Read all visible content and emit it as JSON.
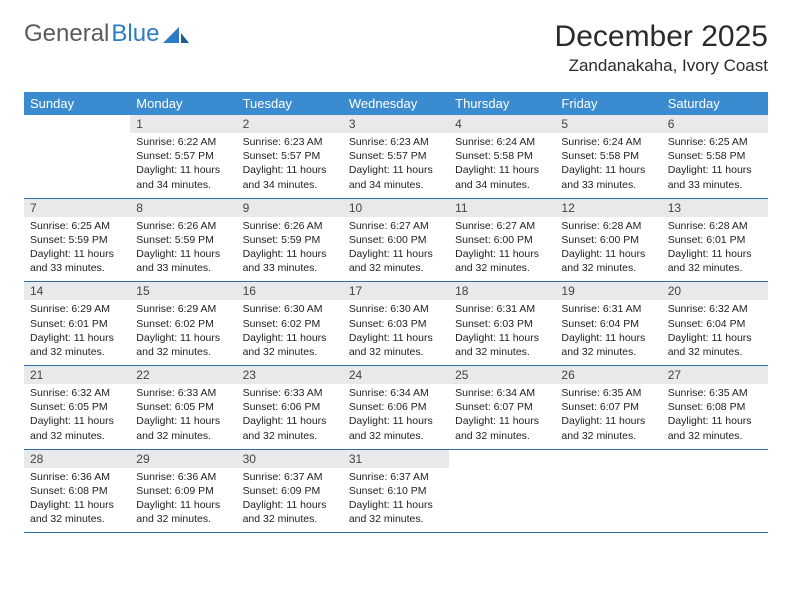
{
  "logo": {
    "part1": "General",
    "part2": "Blue"
  },
  "title": {
    "month": "December 2025",
    "location": "Zandanakaha, Ivory Coast"
  },
  "colors": {
    "header_bg": "#3b8bd0",
    "header_text": "#ffffff",
    "daynum_bg": "#e8e9ea",
    "row_border": "#2d6fa8",
    "logo_gray": "#5a5a5a",
    "logo_blue": "#2d7bc4"
  },
  "weekdays": [
    "Sunday",
    "Monday",
    "Tuesday",
    "Wednesday",
    "Thursday",
    "Friday",
    "Saturday"
  ],
  "weeks": [
    [
      {
        "empty": true
      },
      {
        "num": "1",
        "sunrise": "Sunrise: 6:22 AM",
        "sunset": "Sunset: 5:57 PM",
        "daylight": "Daylight: 11 hours and 34 minutes."
      },
      {
        "num": "2",
        "sunrise": "Sunrise: 6:23 AM",
        "sunset": "Sunset: 5:57 PM",
        "daylight": "Daylight: 11 hours and 34 minutes."
      },
      {
        "num": "3",
        "sunrise": "Sunrise: 6:23 AM",
        "sunset": "Sunset: 5:57 PM",
        "daylight": "Daylight: 11 hours and 34 minutes."
      },
      {
        "num": "4",
        "sunrise": "Sunrise: 6:24 AM",
        "sunset": "Sunset: 5:58 PM",
        "daylight": "Daylight: 11 hours and 34 minutes."
      },
      {
        "num": "5",
        "sunrise": "Sunrise: 6:24 AM",
        "sunset": "Sunset: 5:58 PM",
        "daylight": "Daylight: 11 hours and 33 minutes."
      },
      {
        "num": "6",
        "sunrise": "Sunrise: 6:25 AM",
        "sunset": "Sunset: 5:58 PM",
        "daylight": "Daylight: 11 hours and 33 minutes."
      }
    ],
    [
      {
        "num": "7",
        "sunrise": "Sunrise: 6:25 AM",
        "sunset": "Sunset: 5:59 PM",
        "daylight": "Daylight: 11 hours and 33 minutes."
      },
      {
        "num": "8",
        "sunrise": "Sunrise: 6:26 AM",
        "sunset": "Sunset: 5:59 PM",
        "daylight": "Daylight: 11 hours and 33 minutes."
      },
      {
        "num": "9",
        "sunrise": "Sunrise: 6:26 AM",
        "sunset": "Sunset: 5:59 PM",
        "daylight": "Daylight: 11 hours and 33 minutes."
      },
      {
        "num": "10",
        "sunrise": "Sunrise: 6:27 AM",
        "sunset": "Sunset: 6:00 PM",
        "daylight": "Daylight: 11 hours and 32 minutes."
      },
      {
        "num": "11",
        "sunrise": "Sunrise: 6:27 AM",
        "sunset": "Sunset: 6:00 PM",
        "daylight": "Daylight: 11 hours and 32 minutes."
      },
      {
        "num": "12",
        "sunrise": "Sunrise: 6:28 AM",
        "sunset": "Sunset: 6:00 PM",
        "daylight": "Daylight: 11 hours and 32 minutes."
      },
      {
        "num": "13",
        "sunrise": "Sunrise: 6:28 AM",
        "sunset": "Sunset: 6:01 PM",
        "daylight": "Daylight: 11 hours and 32 minutes."
      }
    ],
    [
      {
        "num": "14",
        "sunrise": "Sunrise: 6:29 AM",
        "sunset": "Sunset: 6:01 PM",
        "daylight": "Daylight: 11 hours and 32 minutes."
      },
      {
        "num": "15",
        "sunrise": "Sunrise: 6:29 AM",
        "sunset": "Sunset: 6:02 PM",
        "daylight": "Daylight: 11 hours and 32 minutes."
      },
      {
        "num": "16",
        "sunrise": "Sunrise: 6:30 AM",
        "sunset": "Sunset: 6:02 PM",
        "daylight": "Daylight: 11 hours and 32 minutes."
      },
      {
        "num": "17",
        "sunrise": "Sunrise: 6:30 AM",
        "sunset": "Sunset: 6:03 PM",
        "daylight": "Daylight: 11 hours and 32 minutes."
      },
      {
        "num": "18",
        "sunrise": "Sunrise: 6:31 AM",
        "sunset": "Sunset: 6:03 PM",
        "daylight": "Daylight: 11 hours and 32 minutes."
      },
      {
        "num": "19",
        "sunrise": "Sunrise: 6:31 AM",
        "sunset": "Sunset: 6:04 PM",
        "daylight": "Daylight: 11 hours and 32 minutes."
      },
      {
        "num": "20",
        "sunrise": "Sunrise: 6:32 AM",
        "sunset": "Sunset: 6:04 PM",
        "daylight": "Daylight: 11 hours and 32 minutes."
      }
    ],
    [
      {
        "num": "21",
        "sunrise": "Sunrise: 6:32 AM",
        "sunset": "Sunset: 6:05 PM",
        "daylight": "Daylight: 11 hours and 32 minutes."
      },
      {
        "num": "22",
        "sunrise": "Sunrise: 6:33 AM",
        "sunset": "Sunset: 6:05 PM",
        "daylight": "Daylight: 11 hours and 32 minutes."
      },
      {
        "num": "23",
        "sunrise": "Sunrise: 6:33 AM",
        "sunset": "Sunset: 6:06 PM",
        "daylight": "Daylight: 11 hours and 32 minutes."
      },
      {
        "num": "24",
        "sunrise": "Sunrise: 6:34 AM",
        "sunset": "Sunset: 6:06 PM",
        "daylight": "Daylight: 11 hours and 32 minutes."
      },
      {
        "num": "25",
        "sunrise": "Sunrise: 6:34 AM",
        "sunset": "Sunset: 6:07 PM",
        "daylight": "Daylight: 11 hours and 32 minutes."
      },
      {
        "num": "26",
        "sunrise": "Sunrise: 6:35 AM",
        "sunset": "Sunset: 6:07 PM",
        "daylight": "Daylight: 11 hours and 32 minutes."
      },
      {
        "num": "27",
        "sunrise": "Sunrise: 6:35 AM",
        "sunset": "Sunset: 6:08 PM",
        "daylight": "Daylight: 11 hours and 32 minutes."
      }
    ],
    [
      {
        "num": "28",
        "sunrise": "Sunrise: 6:36 AM",
        "sunset": "Sunset: 6:08 PM",
        "daylight": "Daylight: 11 hours and 32 minutes."
      },
      {
        "num": "29",
        "sunrise": "Sunrise: 6:36 AM",
        "sunset": "Sunset: 6:09 PM",
        "daylight": "Daylight: 11 hours and 32 minutes."
      },
      {
        "num": "30",
        "sunrise": "Sunrise: 6:37 AM",
        "sunset": "Sunset: 6:09 PM",
        "daylight": "Daylight: 11 hours and 32 minutes."
      },
      {
        "num": "31",
        "sunrise": "Sunrise: 6:37 AM",
        "sunset": "Sunset: 6:10 PM",
        "daylight": "Daylight: 11 hours and 32 minutes."
      },
      {
        "empty": true
      },
      {
        "empty": true
      },
      {
        "empty": true
      }
    ]
  ]
}
